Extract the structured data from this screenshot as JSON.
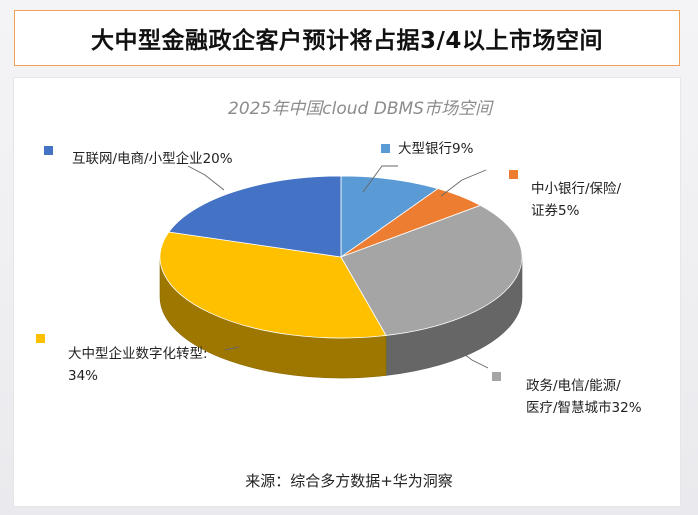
{
  "banner": {
    "title": "大中型金融政企客户预计将占据3/4以上市场空间"
  },
  "chart_data": {
    "type": "pie",
    "title": "2025年中国cloud DBMS市场空间",
    "slices": [
      {
        "label": "大型银行9%",
        "value": 9,
        "color": "#5b9bd5"
      },
      {
        "label": "中小银行/保险/\n证券5%",
        "value": 5,
        "color": "#ed7d31"
      },
      {
        "label": "政务/电信/能源/\n医疗/智慧城市32%",
        "value": 32,
        "color": "#a5a5a5"
      },
      {
        "label": "大中型企业数字化转型:\n34%",
        "value": 34,
        "color": "#ffc000"
      },
      {
        "label": "互联网/电商/小型企业20%",
        "value": 20,
        "color": "#4472c4"
      }
    ],
    "legend_position": "around"
  },
  "source": {
    "text": "来源：综合多方数据+华为洞察"
  }
}
